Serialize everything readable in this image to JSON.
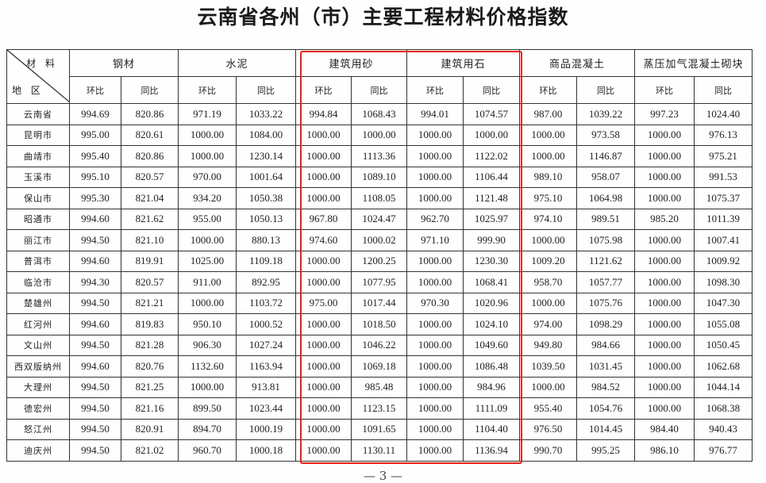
{
  "title": "云南省各州（市）主要工程材料价格指数",
  "header": {
    "corner_material": "材 料",
    "corner_region": "地 区",
    "materials": [
      "钢材",
      "水泥",
      "建筑用砂",
      "建筑用石",
      "商品混凝土",
      "蒸压加气混凝土砌块"
    ],
    "sub_mom": "环比",
    "sub_yoy": "同比"
  },
  "rows": [
    {
      "region": "云南省",
      "values": [
        "994.69",
        "820.86",
        "971.19",
        "1033.22",
        "994.84",
        "1068.43",
        "994.01",
        "1074.57",
        "987.00",
        "1039.22",
        "997.23",
        "1024.40"
      ]
    },
    {
      "region": "昆明市",
      "values": [
        "995.00",
        "820.61",
        "1000.00",
        "1084.00",
        "1000.00",
        "1000.00",
        "1000.00",
        "1000.00",
        "1000.00",
        "973.58",
        "1000.00",
        "976.13"
      ]
    },
    {
      "region": "曲靖市",
      "values": [
        "995.40",
        "820.86",
        "1000.00",
        "1230.14",
        "1000.00",
        "1113.36",
        "1000.00",
        "1122.02",
        "1000.00",
        "1146.87",
        "1000.00",
        "975.21"
      ]
    },
    {
      "region": "玉溪市",
      "values": [
        "995.10",
        "820.57",
        "970.00",
        "1001.64",
        "1000.00",
        "1089.10",
        "1000.00",
        "1106.44",
        "989.10",
        "958.07",
        "1000.00",
        "991.53"
      ]
    },
    {
      "region": "保山市",
      "values": [
        "995.30",
        "821.04",
        "934.20",
        "1050.38",
        "1000.00",
        "1108.05",
        "1000.00",
        "1121.48",
        "975.10",
        "1064.98",
        "1000.00",
        "1075.37"
      ]
    },
    {
      "region": "昭通市",
      "values": [
        "994.60",
        "821.62",
        "955.00",
        "1050.13",
        "967.80",
        "1024.47",
        "962.70",
        "1025.97",
        "974.10",
        "989.51",
        "985.20",
        "1011.39"
      ]
    },
    {
      "region": "丽江市",
      "values": [
        "994.50",
        "821.10",
        "1000.00",
        "880.13",
        "974.60",
        "1000.02",
        "971.10",
        "999.90",
        "1000.00",
        "1075.98",
        "1000.00",
        "1007.41"
      ]
    },
    {
      "region": "普洱市",
      "values": [
        "994.60",
        "819.91",
        "1025.00",
        "1109.18",
        "1000.00",
        "1200.25",
        "1000.00",
        "1230.30",
        "1009.20",
        "1121.62",
        "1000.00",
        "1009.92"
      ]
    },
    {
      "region": "临沧市",
      "values": [
        "994.30",
        "820.57",
        "911.00",
        "892.95",
        "1000.00",
        "1077.95",
        "1000.00",
        "1068.41",
        "958.70",
        "1057.77",
        "1000.00",
        "1098.30"
      ]
    },
    {
      "region": "楚雄州",
      "values": [
        "994.50",
        "821.21",
        "1000.00",
        "1103.72",
        "975.00",
        "1017.44",
        "970.30",
        "1020.96",
        "1000.00",
        "1075.76",
        "1000.00",
        "1047.30"
      ]
    },
    {
      "region": "红河州",
      "values": [
        "994.60",
        "819.83",
        "950.10",
        "1000.52",
        "1000.00",
        "1018.50",
        "1000.00",
        "1024.10",
        "974.00",
        "1098.29",
        "1000.00",
        "1055.08"
      ]
    },
    {
      "region": "文山州",
      "values": [
        "994.50",
        "821.28",
        "906.30",
        "1027.24",
        "1000.00",
        "1046.22",
        "1000.00",
        "1049.60",
        "949.80",
        "984.66",
        "1000.00",
        "1050.45"
      ]
    },
    {
      "region": "西双版纳州",
      "values": [
        "994.60",
        "820.76",
        "1132.60",
        "1163.94",
        "1000.00",
        "1069.18",
        "1000.00",
        "1086.48",
        "1039.50",
        "1031.45",
        "1000.00",
        "1062.68"
      ]
    },
    {
      "region": "大理州",
      "values": [
        "994.50",
        "821.25",
        "1000.00",
        "913.81",
        "1000.00",
        "985.48",
        "1000.00",
        "984.96",
        "1000.00",
        "984.52",
        "1000.00",
        "1044.14"
      ]
    },
    {
      "region": "德宏州",
      "values": [
        "994.50",
        "821.16",
        "899.50",
        "1023.44",
        "1000.00",
        "1123.15",
        "1000.00",
        "1111.09",
        "955.40",
        "1054.76",
        "1000.00",
        "1068.38"
      ]
    },
    {
      "region": "怒江州",
      "values": [
        "994.50",
        "820.91",
        "894.70",
        "1000.19",
        "1000.00",
        "1091.65",
        "1000.00",
        "1104.40",
        "976.50",
        "1014.45",
        "984.40",
        "940.43"
      ]
    },
    {
      "region": "迪庆州",
      "values": [
        "994.50",
        "821.02",
        "960.70",
        "1000.18",
        "1000.00",
        "1130.11",
        "1000.00",
        "1136.94",
        "990.70",
        "995.25",
        "986.10",
        "976.77"
      ]
    }
  ],
  "highlight_color": "#e5231b",
  "page_number": "— 3 —"
}
